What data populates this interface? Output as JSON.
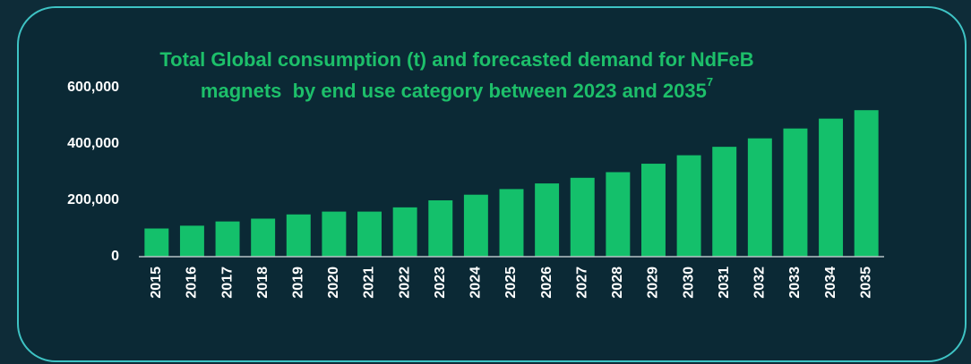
{
  "chart_data": {
    "type": "bar",
    "title": [
      "Total Global consumption (t) and forecasted demand for NdFeB",
      "magnets  by end use category between 2023 and 2035"
    ],
    "title_note": "7",
    "categories": [
      "2015",
      "2016",
      "2017",
      "2018",
      "2019",
      "2020",
      "2021",
      "2022",
      "2023",
      "2024",
      "2025",
      "2026",
      "2027",
      "2028",
      "2029",
      "2030",
      "2031",
      "2032",
      "2033",
      "2034",
      "2035"
    ],
    "values": [
      100000,
      110000,
      125000,
      135000,
      150000,
      160000,
      160000,
      175000,
      200000,
      220000,
      240000,
      260000,
      280000,
      300000,
      330000,
      360000,
      390000,
      420000,
      455000,
      490000,
      520000
    ],
    "color": "#14c06b",
    "ylim": [
      0,
      600000
    ],
    "yticks": [
      0,
      {
        "value": 200000,
        "label": "200,000"
      },
      {
        "value": 400000,
        "label": "400,000"
      },
      {
        "value": 600000,
        "label": "600,000"
      }
    ],
    "grid": false
  }
}
